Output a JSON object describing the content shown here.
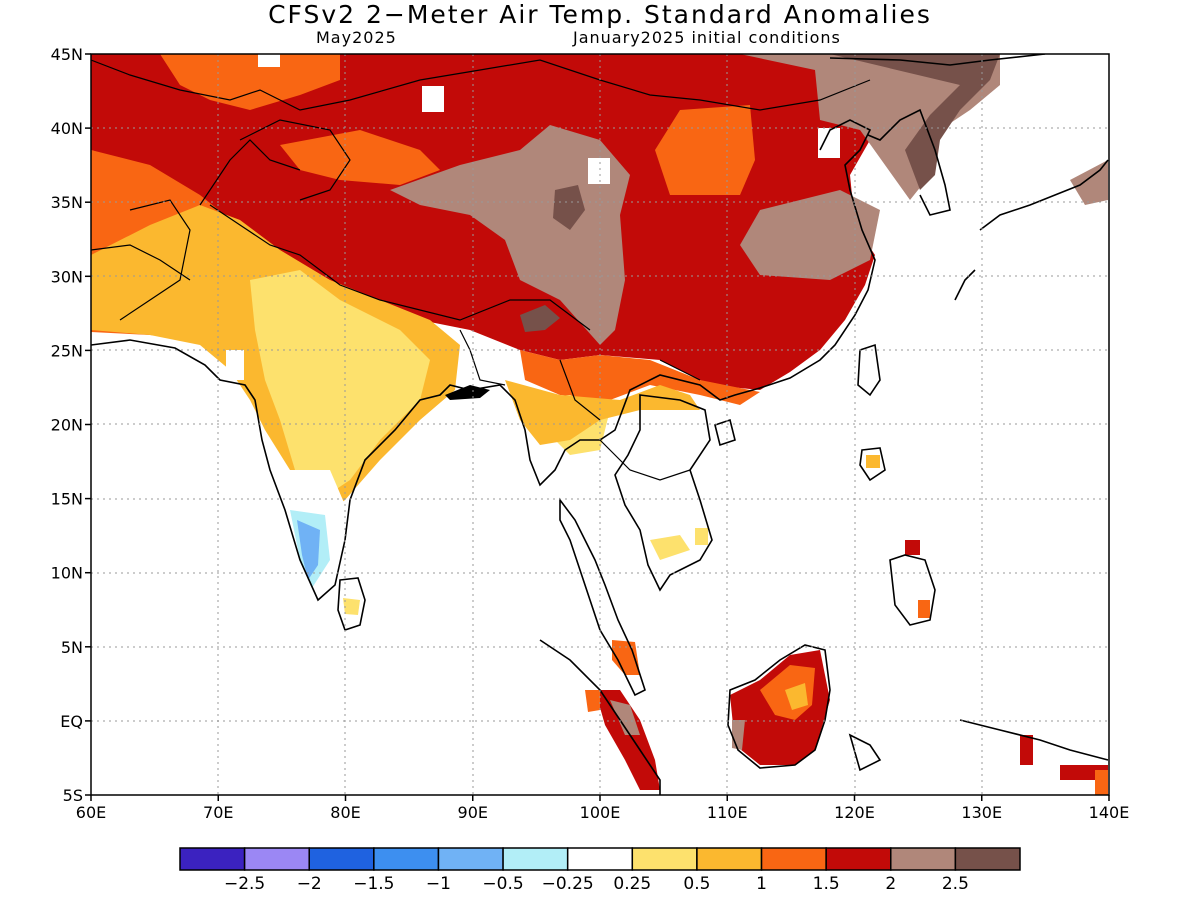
{
  "title": "CFSv2 2−Meter Air Temp. Standard Anomalies",
  "valid_month": "May2025",
  "initial_conditions": "January2025 initial conditions",
  "map": {
    "lon_range": [
      60,
      140
    ],
    "lat_range": [
      -5,
      45
    ],
    "lat_labels": [
      {
        "lat": 45,
        "label": "45N"
      },
      {
        "lat": 40,
        "label": "40N"
      },
      {
        "lat": 35,
        "label": "35N"
      },
      {
        "lat": 30,
        "label": "30N"
      },
      {
        "lat": 25,
        "label": "25N"
      },
      {
        "lat": 20,
        "label": "20N"
      },
      {
        "lat": 15,
        "label": "15N"
      },
      {
        "lat": 10,
        "label": "10N"
      },
      {
        "lat": 5,
        "label": "5N"
      },
      {
        "lat": 0,
        "label": "EQ"
      },
      {
        "lat": -5,
        "label": "5S"
      }
    ],
    "lon_labels": [
      {
        "lon": 60,
        "label": "60E"
      },
      {
        "lon": 70,
        "label": "70E"
      },
      {
        "lon": 80,
        "label": "80E"
      },
      {
        "lon": 90,
        "label": "90E"
      },
      {
        "lon": 100,
        "label": "100E"
      },
      {
        "lon": 110,
        "label": "110E"
      },
      {
        "lon": 120,
        "label": "120E"
      },
      {
        "lon": 130,
        "label": "130E"
      },
      {
        "lon": 140,
        "label": "140E"
      }
    ]
  },
  "legend": {
    "colors": [
      "#3b22c0",
      "#9b87f4",
      "#1f62e0",
      "#3d8ff0",
      "#70b2f5",
      "#b2eef7",
      "#ffffff",
      "#fde16d",
      "#fbb82f",
      "#f96613",
      "#c20a08",
      "#b0877a",
      "#76514a"
    ],
    "tick_labels": [
      "−2.5",
      "−2",
      "−1.5",
      "−1",
      "−0.5",
      "−0.25",
      "0.25",
      "0.5",
      "1",
      "1.5",
      "2",
      "2.5"
    ]
  },
  "colors": {
    "dark_red": "#c20a08",
    "orange": "#f96613",
    "light_orange": "#fbb82f",
    "yellow": "#fde16d",
    "tan": "#b0877a",
    "dark_brown": "#76514a",
    "light_blue": "#70b2f5",
    "pale_blue": "#b2eef7"
  }
}
